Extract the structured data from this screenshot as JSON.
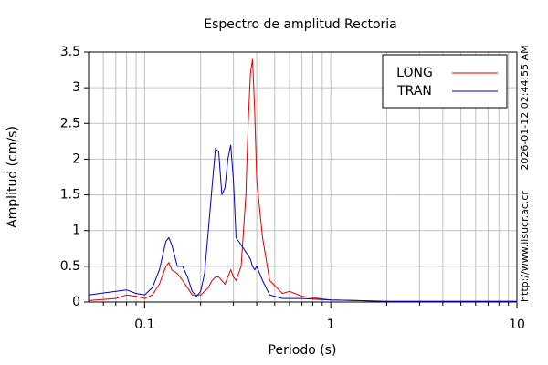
{
  "chart_data": {
    "type": "line",
    "title": "Espectro de amplitud Rectoria",
    "x_label": "Periodo (s)",
    "y_label": "Amplitud (cm/s)",
    "x": [
      0.05,
      0.07,
      0.08,
      0.09,
      0.1,
      0.11,
      0.12,
      0.13,
      0.135,
      0.14,
      0.15,
      0.16,
      0.17,
      0.18,
      0.19,
      0.2,
      0.21,
      0.22,
      0.23,
      0.24,
      0.25,
      0.26,
      0.27,
      0.28,
      0.29,
      0.3,
      0.31,
      0.33,
      0.35,
      0.36,
      0.37,
      0.38,
      0.39,
      0.4,
      0.43,
      0.47,
      0.55,
      0.6,
      0.7,
      1,
      2,
      10
    ],
    "series": [
      {
        "name": "LONG",
        "color": "#dd0000",
        "values": [
          0.02,
          0.05,
          0.1,
          0.08,
          0.05,
          0.1,
          0.25,
          0.5,
          0.55,
          0.45,
          0.4,
          0.3,
          0.2,
          0.1,
          0.1,
          0.1,
          0.15,
          0.2,
          0.3,
          0.35,
          0.35,
          0.3,
          0.25,
          0.35,
          0.45,
          0.35,
          0.3,
          0.5,
          1.5,
          2.5,
          3.2,
          3.4,
          2.7,
          1.7,
          0.9,
          0.3,
          0.12,
          0.15,
          0.08,
          0.03,
          0.01,
          0.01
        ]
      },
      {
        "name": "TRAN",
        "color": "#0000bb",
        "values": [
          0.1,
          0.15,
          0.17,
          0.12,
          0.1,
          0.2,
          0.45,
          0.85,
          0.9,
          0.8,
          0.5,
          0.5,
          0.35,
          0.15,
          0.08,
          0.15,
          0.4,
          1.0,
          1.6,
          2.15,
          2.1,
          1.5,
          1.6,
          2.0,
          2.2,
          1.7,
          0.9,
          0.8,
          0.7,
          0.65,
          0.6,
          0.5,
          0.45,
          0.5,
          0.3,
          0.1,
          0.05,
          0.05,
          0.05,
          0.03,
          0.01,
          0.01
        ]
      }
    ],
    "xlim": [
      0.05,
      10
    ],
    "x_log": true,
    "xticks": [
      0.1,
      1,
      10
    ],
    "xminor_ticks": [
      0.06,
      0.07,
      0.08,
      0.09,
      0.2,
      0.3,
      0.4,
      0.5,
      0.6,
      0.7,
      0.8,
      0.9,
      2,
      3,
      4,
      5,
      6,
      7,
      8,
      9
    ],
    "ylim": [
      0,
      3.5
    ],
    "yticks": [
      0,
      0.5,
      1,
      1.5,
      2,
      2.5,
      3,
      3.5
    ],
    "grid": true,
    "legend": "upper right",
    "annotations": [
      "2026-01-12 02:44:55 AM",
      "http://www.lisucr.ac.cr"
    ]
  }
}
